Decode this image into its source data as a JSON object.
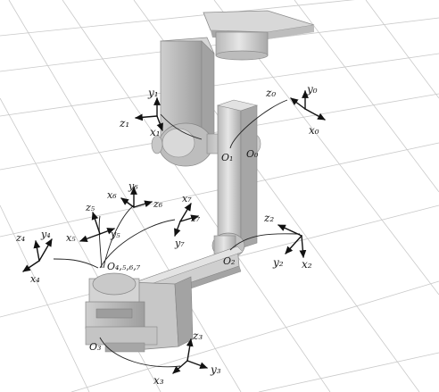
{
  "frames": {
    "frame0": {
      "x": "x₀",
      "y": "y₀",
      "z": "z₀"
    },
    "frame1": {
      "x": "x₁",
      "y": "y₁",
      "z": "z₁"
    },
    "frame2": {
      "x": "x₂",
      "y": "y₂",
      "z": "z₂"
    },
    "frame3": {
      "x": "x₃",
      "y": "y₃",
      "z": "z₃"
    },
    "frame4": {
      "x": "x₄",
      "y": "y₄",
      "z": "z₄"
    },
    "frame5": {
      "x": "x₅",
      "y": "y₅",
      "z": "z₅"
    },
    "frame6": {
      "x": "x₆",
      "y": "y₆",
      "z": "z₆"
    },
    "frame7": {
      "x": "x₇",
      "y": "y₇",
      "z": "z₇"
    }
  },
  "origins": {
    "o0": "O₀",
    "o1": "O₁",
    "o2": "O₂",
    "o3": "O₃",
    "o4567": "O₄,₅,₆,₇"
  },
  "colors": {
    "background": "#ffffff",
    "grid": "#c9c9c9",
    "robot_light": "#e4e4e4",
    "robot_mid": "#c6c6c6",
    "robot_dark": "#9a9a9a",
    "ink": "#111111"
  }
}
